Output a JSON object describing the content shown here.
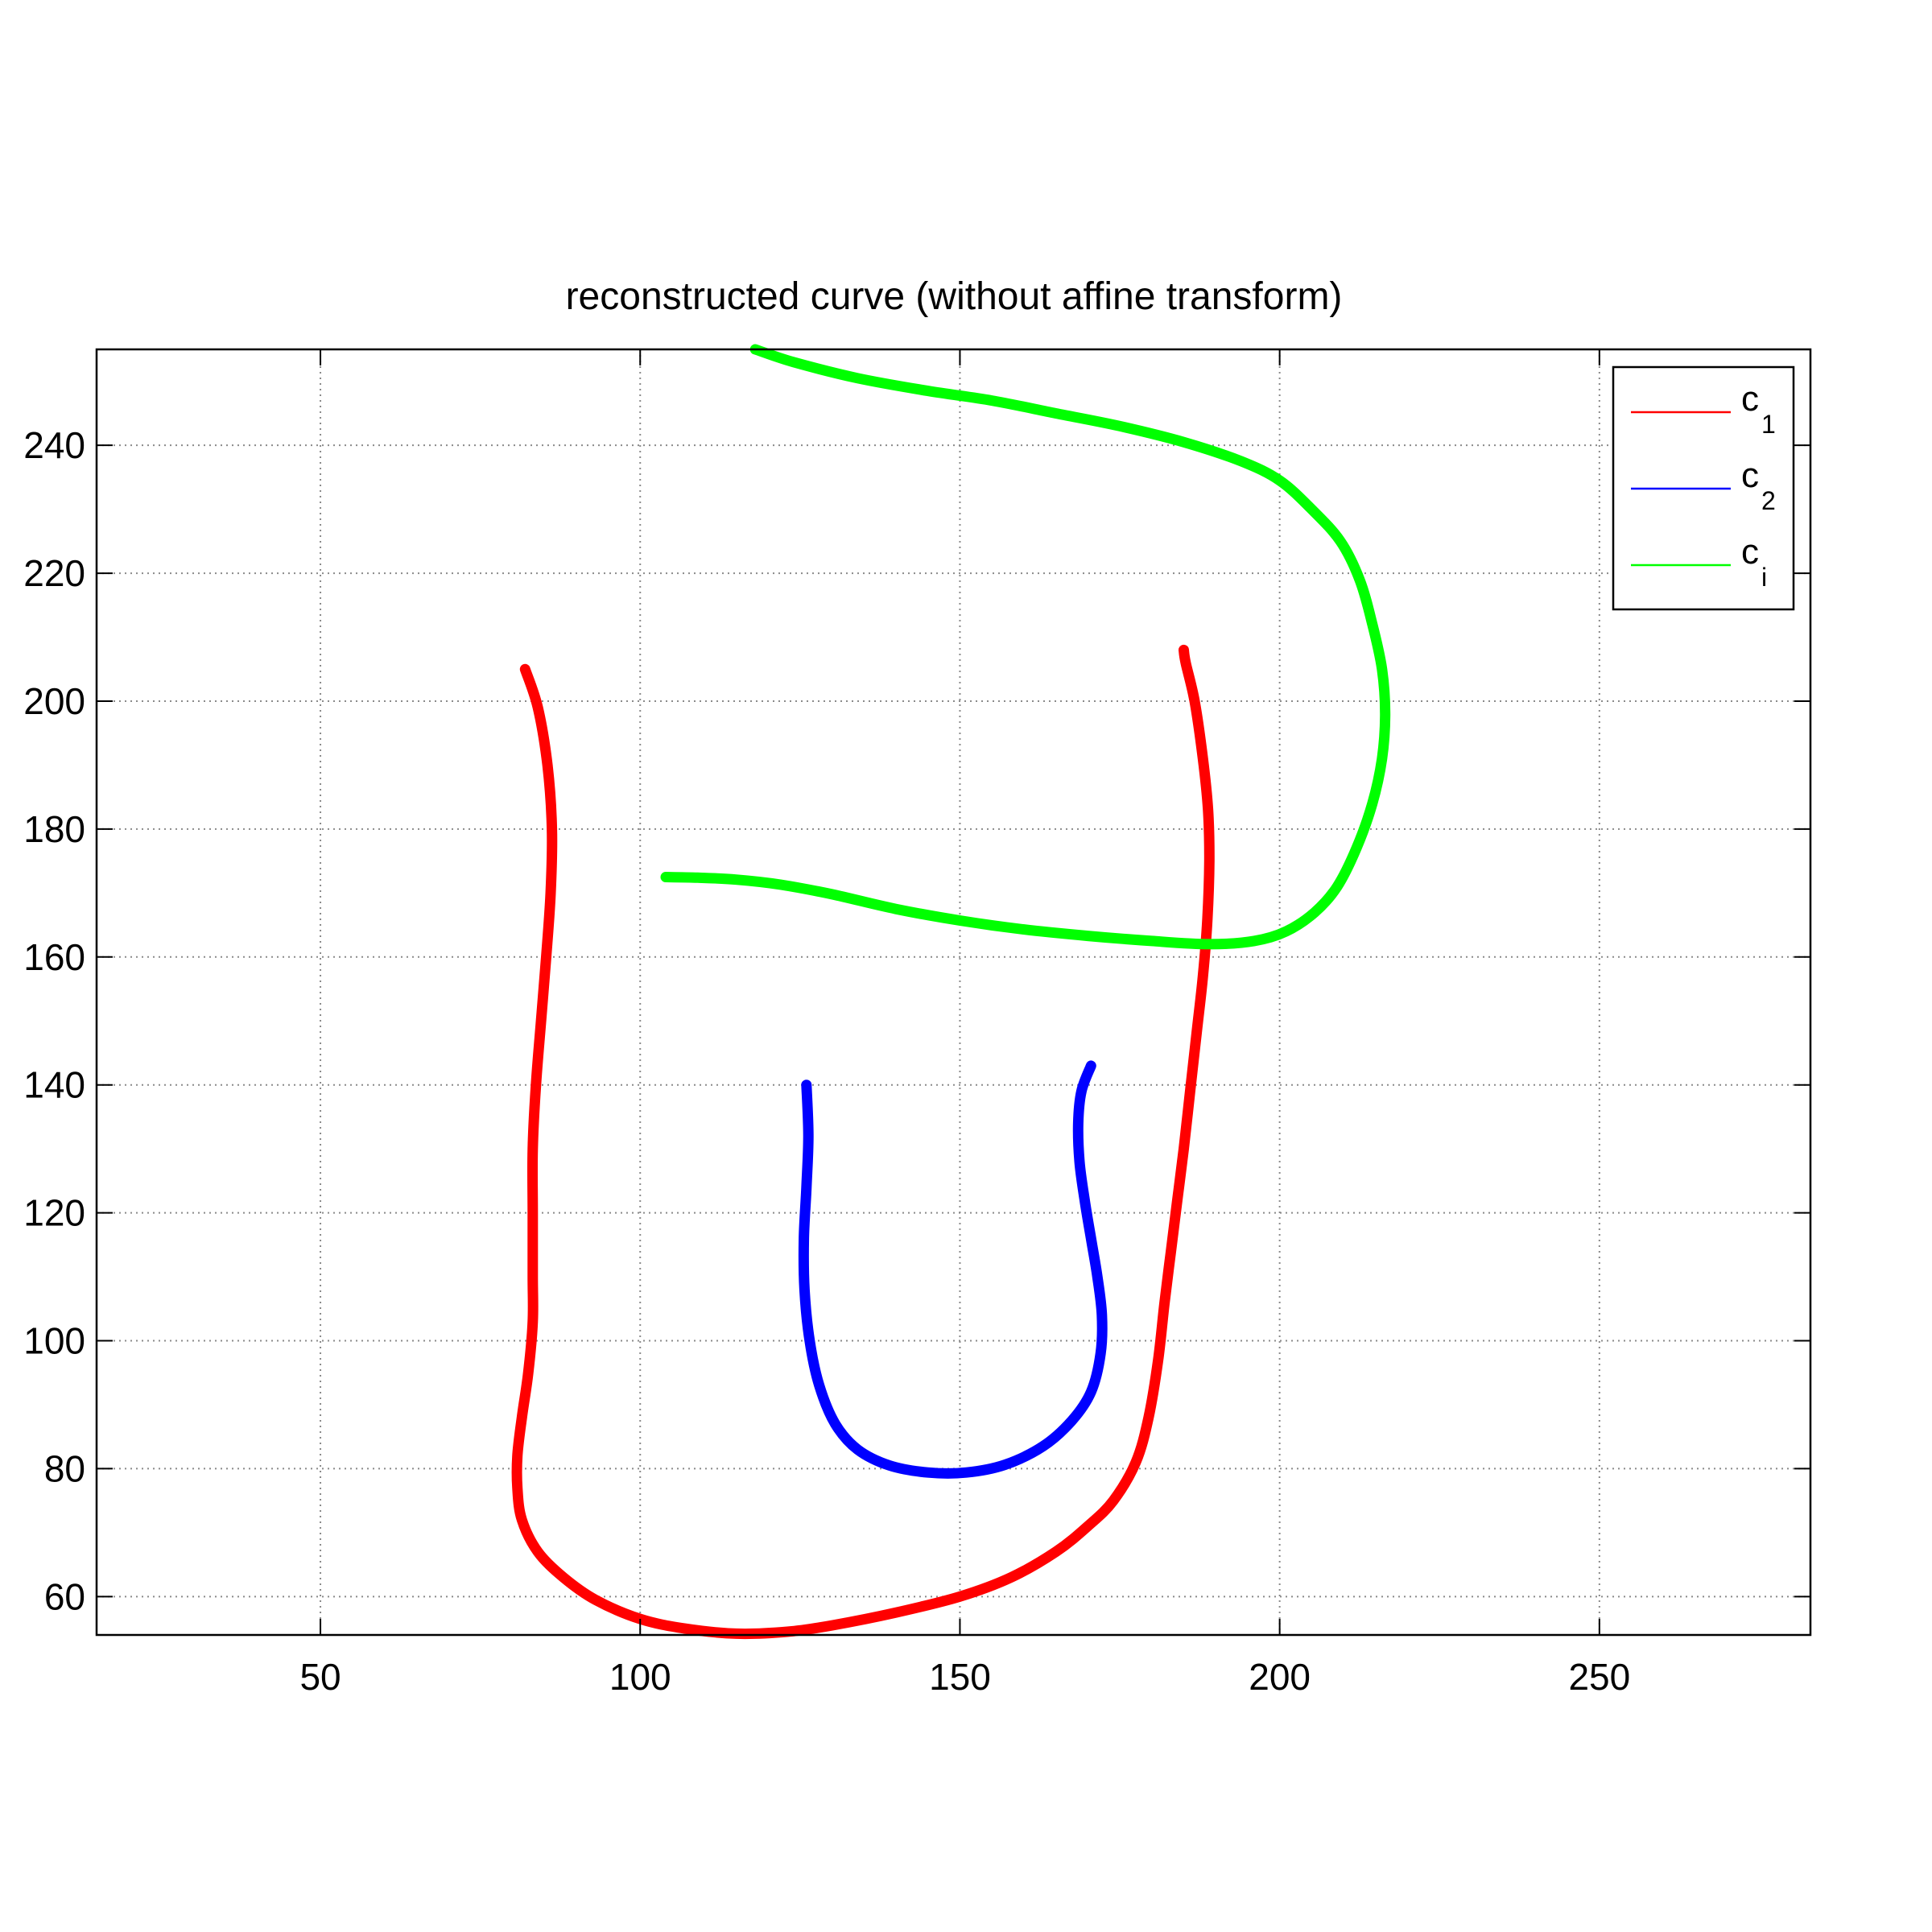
{
  "chart_data": {
    "type": "line",
    "title": "reconstructed curve (without affine transform)",
    "xlabel": "",
    "ylabel": "",
    "xlim": [
      15,
      283
    ],
    "ylim": [
      54,
      255
    ],
    "xticks": [
      50,
      100,
      150,
      200,
      250
    ],
    "yticks": [
      60,
      80,
      100,
      120,
      140,
      160,
      180,
      200,
      220,
      240
    ],
    "grid": true,
    "legend": "top-right",
    "series": [
      {
        "name": "c",
        "subscript": "1",
        "color": "#ff0000",
        "points": [
          [
            82,
            205
          ],
          [
            84,
            199
          ],
          [
            85.5,
            190
          ],
          [
            86.2,
            180
          ],
          [
            86,
            170
          ],
          [
            85.3,
            160
          ],
          [
            84.5,
            150
          ],
          [
            83.7,
            140
          ],
          [
            83.2,
            130
          ],
          [
            83.2,
            120
          ],
          [
            83.2,
            110
          ],
          [
            83.2,
            103
          ],
          [
            82.5,
            95
          ],
          [
            81.5,
            88
          ],
          [
            80.8,
            82
          ],
          [
            80.8,
            77
          ],
          [
            81.5,
            72
          ],
          [
            84,
            67
          ],
          [
            88,
            63
          ],
          [
            93,
            59.5
          ],
          [
            100,
            56.5
          ],
          [
            107,
            55
          ],
          [
            115,
            54.2
          ],
          [
            123,
            54.5
          ],
          [
            130,
            55.5
          ],
          [
            140,
            57.5
          ],
          [
            150,
            60
          ],
          [
            158,
            63
          ],
          [
            165,
            67
          ],
          [
            170,
            71
          ],
          [
            174,
            75
          ],
          [
            177.5,
            81
          ],
          [
            179.5,
            88
          ],
          [
            181,
            97
          ],
          [
            182,
            106
          ],
          [
            183,
            114
          ],
          [
            184,
            122
          ],
          [
            185,
            130
          ],
          [
            186,
            139
          ],
          [
            187,
            148
          ],
          [
            188,
            157
          ],
          [
            188.7,
            166
          ],
          [
            189,
            175
          ],
          [
            188.8,
            183
          ],
          [
            188,
            191
          ],
          [
            186.7,
            200
          ],
          [
            185.3,
            206
          ],
          [
            185,
            208
          ]
        ]
      },
      {
        "name": "c",
        "subscript": "2",
        "color": "#0000ff",
        "points": [
          [
            126,
            140
          ],
          [
            126.3,
            132
          ],
          [
            126,
            124
          ],
          [
            125.6,
            116
          ],
          [
            125.7,
            108
          ],
          [
            126.5,
            100
          ],
          [
            128,
            93
          ],
          [
            130.5,
            87
          ],
          [
            134,
            83
          ],
          [
            139,
            80.5
          ],
          [
            145,
            79.4
          ],
          [
            151,
            79.4
          ],
          [
            157,
            80.6
          ],
          [
            163,
            83.5
          ],
          [
            167.5,
            87.5
          ],
          [
            170.5,
            92
          ],
          [
            172,
            98
          ],
          [
            172.2,
            104
          ],
          [
            171.5,
            110
          ],
          [
            170.5,
            116
          ],
          [
            169.5,
            122
          ],
          [
            168.7,
            128
          ],
          [
            168.5,
            134
          ],
          [
            169,
            139
          ],
          [
            170.5,
            143
          ]
        ]
      },
      {
        "name": "c",
        "subscript": "i",
        "color": "#00ff00",
        "points": [
          [
            118,
            255
          ],
          [
            124,
            253
          ],
          [
            134,
            250.5
          ],
          [
            145,
            248.5
          ],
          [
            155,
            247
          ],
          [
            165,
            245
          ],
          [
            175,
            243
          ],
          [
            185,
            240.5
          ],
          [
            194,
            237.5
          ],
          [
            200,
            234.5
          ],
          [
            205,
            230
          ],
          [
            209.5,
            225
          ],
          [
            212.5,
            219
          ],
          [
            214.5,
            212
          ],
          [
            216,
            205
          ],
          [
            216.5,
            198
          ],
          [
            216,
            191
          ],
          [
            214.5,
            184
          ],
          [
            212,
            177
          ],
          [
            209,
            171
          ],
          [
            205.5,
            167
          ],
          [
            201,
            164
          ],
          [
            196,
            162.5
          ],
          [
            189,
            162
          ],
          [
            180,
            162.5
          ],
          [
            170,
            163.3
          ],
          [
            160,
            164.3
          ],
          [
            150,
            165.7
          ],
          [
            140,
            167.5
          ],
          [
            130,
            169.8
          ],
          [
            122,
            171.3
          ],
          [
            115,
            172.1
          ],
          [
            109,
            172.4
          ],
          [
            104,
            172.5
          ]
        ]
      }
    ]
  }
}
